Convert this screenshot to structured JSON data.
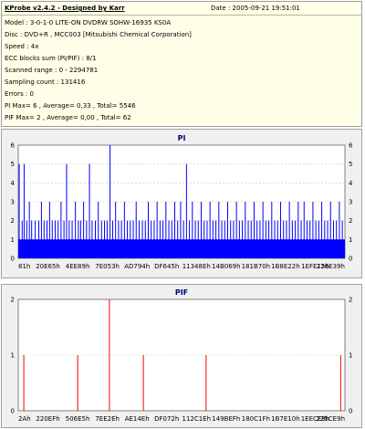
{
  "info": {
    "title": "KProbe v2.4.2 - Designed by Karr",
    "date": "Date : 2005-09-21 19:51:01",
    "lines": [
      "Model : 3-0-1-0 LITE-ON DVDRW SOHW-16935 KS0A",
      "Disc : DVD+R , MCC003 [Mitsubishi Chemical Corporation]",
      "Speed : 4x",
      "ECC blocks sum (PI/PIF) : 8/1",
      "Scanned range : 0 - 2294781",
      "Sampling count : 131416",
      "Errors : 0",
      "PI Max= 6 , Average= 0,33 , Total= 5546",
      "PIF Max= 2 , Average= 0,00 , Total= 62"
    ]
  },
  "chart_data": [
    {
      "type": "bar",
      "title": "PI",
      "ylim": [
        0,
        6
      ],
      "yticks": [
        0,
        1,
        2,
        3,
        4,
        5,
        6
      ],
      "xticks": [
        "81h",
        "20E65h",
        "4EE89h",
        "7E053h",
        "AD794h",
        "DF645h",
        "11348Eh",
        "14B069h",
        "181B70h",
        "1B8E22h",
        "1EFE15h",
        "226E39h"
      ],
      "series_color": "#0000ff",
      "baseline": {
        "range": [
          0,
          1
        ],
        "value": 1
      },
      "bars": [
        {
          "x": 0.003,
          "y": 5
        },
        {
          "x": 0.012,
          "y": 2
        },
        {
          "x": 0.018,
          "y": 5
        },
        {
          "x": 0.026,
          "y": 2
        },
        {
          "x": 0.034,
          "y": 3
        },
        {
          "x": 0.041,
          "y": 2
        },
        {
          "x": 0.052,
          "y": 2
        },
        {
          "x": 0.063,
          "y": 2
        },
        {
          "x": 0.071,
          "y": 3
        },
        {
          "x": 0.079,
          "y": 2
        },
        {
          "x": 0.088,
          "y": 2
        },
        {
          "x": 0.096,
          "y": 3
        },
        {
          "x": 0.104,
          "y": 2
        },
        {
          "x": 0.113,
          "y": 2
        },
        {
          "x": 0.122,
          "y": 2
        },
        {
          "x": 0.131,
          "y": 3
        },
        {
          "x": 0.14,
          "y": 2
        },
        {
          "x": 0.148,
          "y": 5
        },
        {
          "x": 0.156,
          "y": 2
        },
        {
          "x": 0.165,
          "y": 2
        },
        {
          "x": 0.175,
          "y": 3
        },
        {
          "x": 0.184,
          "y": 2
        },
        {
          "x": 0.191,
          "y": 2
        },
        {
          "x": 0.2,
          "y": 3
        },
        {
          "x": 0.209,
          "y": 2
        },
        {
          "x": 0.218,
          "y": 5
        },
        {
          "x": 0.226,
          "y": 2
        },
        {
          "x": 0.236,
          "y": 2
        },
        {
          "x": 0.245,
          "y": 3
        },
        {
          "x": 0.255,
          "y": 2
        },
        {
          "x": 0.264,
          "y": 2
        },
        {
          "x": 0.272,
          "y": 2
        },
        {
          "x": 0.281,
          "y": 6
        },
        {
          "x": 0.289,
          "y": 2
        },
        {
          "x": 0.298,
          "y": 3
        },
        {
          "x": 0.307,
          "y": 2
        },
        {
          "x": 0.316,
          "y": 2
        },
        {
          "x": 0.325,
          "y": 3
        },
        {
          "x": 0.334,
          "y": 2
        },
        {
          "x": 0.343,
          "y": 2
        },
        {
          "x": 0.352,
          "y": 2
        },
        {
          "x": 0.361,
          "y": 3
        },
        {
          "x": 0.37,
          "y": 2
        },
        {
          "x": 0.38,
          "y": 2
        },
        {
          "x": 0.389,
          "y": 2
        },
        {
          "x": 0.398,
          "y": 3
        },
        {
          "x": 0.407,
          "y": 2
        },
        {
          "x": 0.416,
          "y": 2
        },
        {
          "x": 0.425,
          "y": 3
        },
        {
          "x": 0.434,
          "y": 2
        },
        {
          "x": 0.443,
          "y": 2
        },
        {
          "x": 0.452,
          "y": 3
        },
        {
          "x": 0.461,
          "y": 2
        },
        {
          "x": 0.47,
          "y": 2
        },
        {
          "x": 0.479,
          "y": 3
        },
        {
          "x": 0.488,
          "y": 2
        },
        {
          "x": 0.497,
          "y": 3
        },
        {
          "x": 0.506,
          "y": 2
        },
        {
          "x": 0.515,
          "y": 5
        },
        {
          "x": 0.524,
          "y": 2
        },
        {
          "x": 0.533,
          "y": 3
        },
        {
          "x": 0.542,
          "y": 2
        },
        {
          "x": 0.551,
          "y": 2
        },
        {
          "x": 0.56,
          "y": 3
        },
        {
          "x": 0.569,
          "y": 2
        },
        {
          "x": 0.578,
          "y": 2
        },
        {
          "x": 0.587,
          "y": 3
        },
        {
          "x": 0.596,
          "y": 2
        },
        {
          "x": 0.605,
          "y": 2
        },
        {
          "x": 0.614,
          "y": 3
        },
        {
          "x": 0.623,
          "y": 2
        },
        {
          "x": 0.632,
          "y": 2
        },
        {
          "x": 0.641,
          "y": 3
        },
        {
          "x": 0.65,
          "y": 2
        },
        {
          "x": 0.659,
          "y": 2
        },
        {
          "x": 0.668,
          "y": 3
        },
        {
          "x": 0.677,
          "y": 2
        },
        {
          "x": 0.686,
          "y": 2
        },
        {
          "x": 0.695,
          "y": 3
        },
        {
          "x": 0.704,
          "y": 2
        },
        {
          "x": 0.713,
          "y": 2
        },
        {
          "x": 0.722,
          "y": 3
        },
        {
          "x": 0.731,
          "y": 2
        },
        {
          "x": 0.74,
          "y": 2
        },
        {
          "x": 0.749,
          "y": 3
        },
        {
          "x": 0.758,
          "y": 2
        },
        {
          "x": 0.767,
          "y": 2
        },
        {
          "x": 0.776,
          "y": 3
        },
        {
          "x": 0.785,
          "y": 2
        },
        {
          "x": 0.794,
          "y": 2
        },
        {
          "x": 0.803,
          "y": 3
        },
        {
          "x": 0.812,
          "y": 2
        },
        {
          "x": 0.821,
          "y": 2
        },
        {
          "x": 0.83,
          "y": 3
        },
        {
          "x": 0.839,
          "y": 2
        },
        {
          "x": 0.848,
          "y": 2
        },
        {
          "x": 0.857,
          "y": 3
        },
        {
          "x": 0.866,
          "y": 2
        },
        {
          "x": 0.875,
          "y": 3
        },
        {
          "x": 0.884,
          "y": 2
        },
        {
          "x": 0.893,
          "y": 2
        },
        {
          "x": 0.902,
          "y": 3
        },
        {
          "x": 0.911,
          "y": 2
        },
        {
          "x": 0.92,
          "y": 2
        },
        {
          "x": 0.929,
          "y": 3
        },
        {
          "x": 0.938,
          "y": 2
        },
        {
          "x": 0.947,
          "y": 2
        },
        {
          "x": 0.956,
          "y": 3
        },
        {
          "x": 0.965,
          "y": 2
        },
        {
          "x": 0.974,
          "y": 2
        },
        {
          "x": 0.983,
          "y": 3
        },
        {
          "x": 0.992,
          "y": 2
        }
      ]
    },
    {
      "type": "bar",
      "title": "PIF",
      "ylim": [
        0,
        2
      ],
      "yticks": [
        0,
        1,
        2
      ],
      "xticks": [
        "2Ah",
        "220EFh",
        "506E5h",
        "7EE2Eh",
        "AE14Eh",
        "DF072h",
        "112C1Eh",
        "149BEFh",
        "180C1Fh",
        "1B7E10h",
        "1EECE9h",
        "225CE9h"
      ],
      "series_color": "#ff0000",
      "bars": [
        {
          "x": 0.017,
          "y": 1
        },
        {
          "x": 0.182,
          "y": 1
        },
        {
          "x": 0.279,
          "y": 2
        },
        {
          "x": 0.383,
          "y": 1
        },
        {
          "x": 0.575,
          "y": 1
        },
        {
          "x": 0.987,
          "y": 1
        }
      ]
    }
  ]
}
